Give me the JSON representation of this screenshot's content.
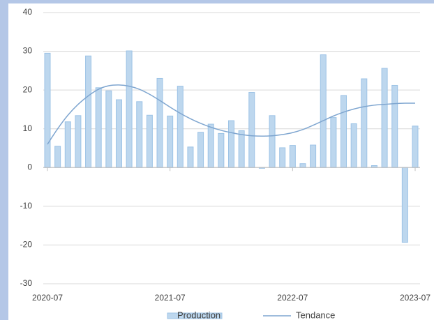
{
  "chart_data": {
    "type": "bar-line",
    "categories": [
      "2020-07",
      null,
      null,
      null,
      null,
      null,
      null,
      null,
      null,
      null,
      null,
      null,
      "2021-07",
      null,
      null,
      null,
      null,
      null,
      null,
      null,
      null,
      null,
      null,
      null,
      "2022-07",
      null,
      null,
      null,
      null,
      null,
      null,
      null,
      null,
      null,
      null,
      null,
      "2023-07"
    ],
    "series": [
      {
        "name": "Production",
        "type": "bar",
        "color": "#bdd7ee",
        "values": [
          29.5,
          5.5,
          11.8,
          13.4,
          28.8,
          20.6,
          19.8,
          17.5,
          30.1,
          17.0,
          13.5,
          23.0,
          13.3,
          21.0,
          5.3,
          9.1,
          11.2,
          8.8,
          12.1,
          9.5,
          19.4,
          -0.2,
          13.4,
          5.1,
          5.7,
          1.0,
          5.8,
          29.1,
          12.9,
          18.6,
          11.3,
          22.9,
          0.5,
          25.6,
          21.2,
          -19.3,
          10.7
        ]
      },
      {
        "name": "Tendance",
        "type": "line",
        "color": "#7fa6d0",
        "values": [
          6,
          10,
          13.5,
          16.3,
          18.5,
          20.2,
          21.1,
          21.3,
          21.0,
          20.2,
          18.9,
          17.3,
          15.6,
          14.0,
          12.6,
          11.4,
          10.4,
          9.6,
          9.0,
          8.5,
          8.2,
          8.1,
          8.2,
          8.5,
          9.0,
          9.8,
          10.9,
          12.1,
          13.3,
          14.3,
          15.1,
          15.7,
          16.1,
          16.3,
          16.5,
          16.6,
          16.6
        ]
      }
    ],
    "ylim": [
      -30,
      40
    ],
    "yticks": [
      -30,
      -20,
      -10,
      0,
      10,
      20,
      30,
      40
    ],
    "grid": true,
    "legend": "bottom"
  }
}
